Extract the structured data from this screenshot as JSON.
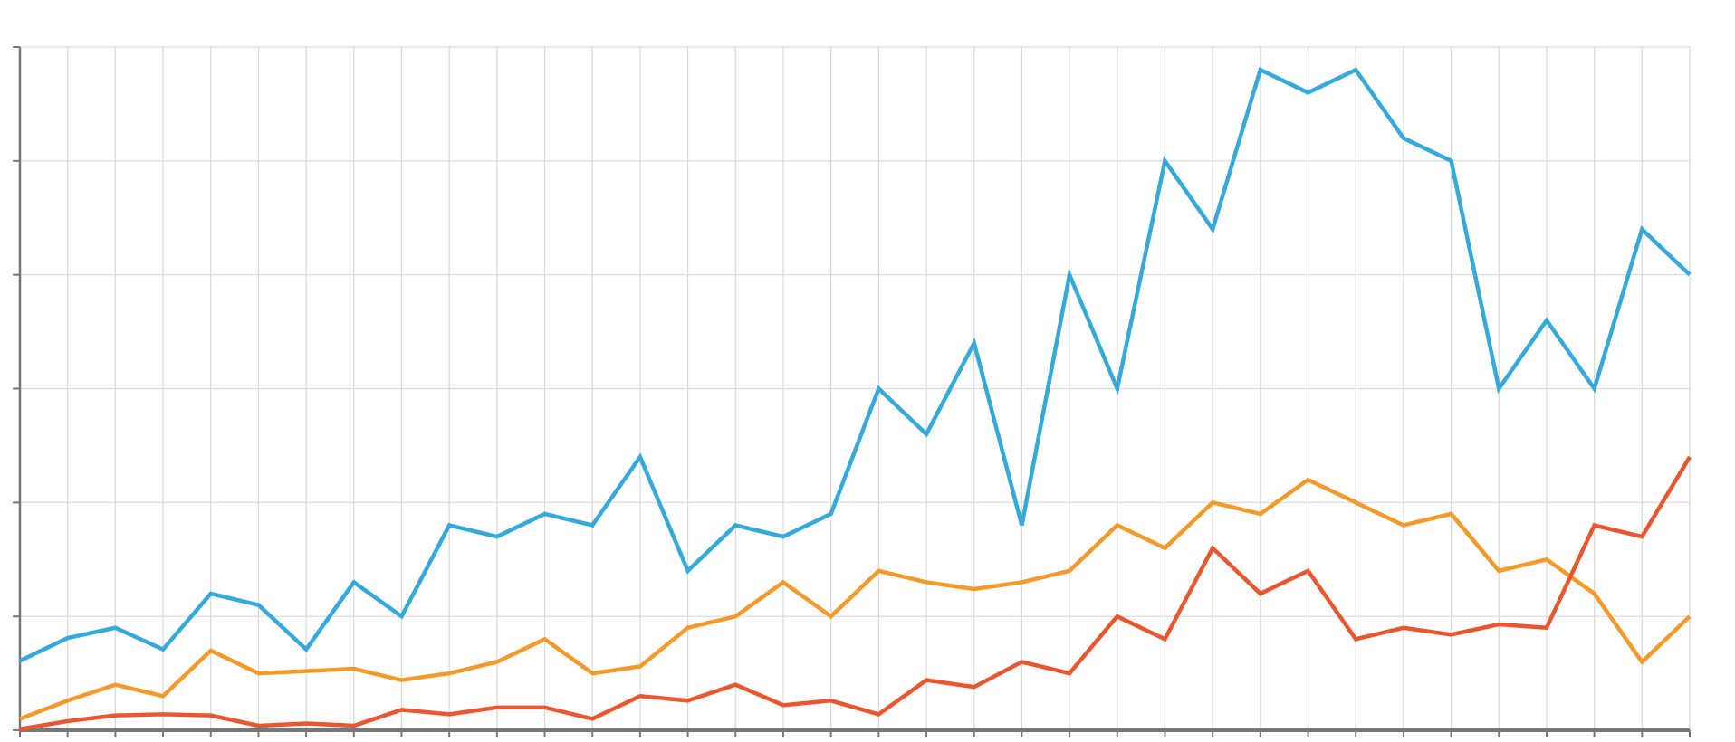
{
  "chart_data": {
    "type": "line",
    "x": [
      0,
      1,
      2,
      3,
      4,
      5,
      6,
      7,
      8,
      9,
      10,
      11,
      12,
      13,
      14,
      15,
      16,
      17,
      18,
      19,
      20,
      21,
      22,
      23,
      24,
      25,
      26,
      27,
      28,
      29,
      30,
      31,
      32,
      33,
      34,
      35
    ],
    "xlim": [
      0,
      35
    ],
    "xticks": [
      0,
      1,
      2,
      3,
      4,
      5,
      6,
      7,
      8,
      9,
      10,
      11,
      12,
      13,
      14,
      15,
      16,
      17,
      18,
      19,
      20,
      21,
      22,
      23,
      24,
      25,
      26,
      27,
      28,
      29,
      30,
      31,
      32,
      33,
      34,
      35
    ],
    "ylim": [
      0,
      60
    ],
    "yticks": [
      0,
      10,
      20,
      30,
      40,
      50,
      60
    ],
    "grid": true,
    "series": [
      {
        "color": "#35a9d9",
        "values": [
          6.1,
          8.1,
          9,
          7.1,
          12,
          11,
          7.1,
          13,
          10,
          18,
          17,
          19,
          18,
          24,
          14,
          18,
          17,
          19,
          30,
          26,
          34,
          18,
          40,
          30,
          50,
          44,
          58,
          56,
          58,
          52,
          50,
          30,
          36,
          30,
          44,
          40
        ]
      },
      {
        "color": "#f39a2b",
        "values": [
          1,
          2.6,
          4,
          3,
          7,
          5,
          5.2,
          5.4,
          4.4,
          5,
          6,
          8,
          5,
          5.6,
          9,
          10,
          13,
          10,
          14,
          13,
          12.4,
          13,
          14,
          18,
          16,
          20,
          19,
          22,
          20,
          18,
          19,
          14,
          15,
          12,
          6,
          10
        ]
      },
      {
        "color": "#e8572f",
        "values": [
          0.1,
          0.8,
          1.3,
          1.4,
          1.3,
          0.4,
          0.6,
          0.4,
          1.8,
          1.4,
          2,
          2,
          1,
          3,
          2.6,
          4,
          2.2,
          2.6,
          1.4,
          4.4,
          3.8,
          6,
          5,
          10,
          8,
          16,
          12,
          14,
          8,
          9,
          8.4,
          9.3,
          9,
          18,
          17,
          24
        ]
      }
    ]
  }
}
